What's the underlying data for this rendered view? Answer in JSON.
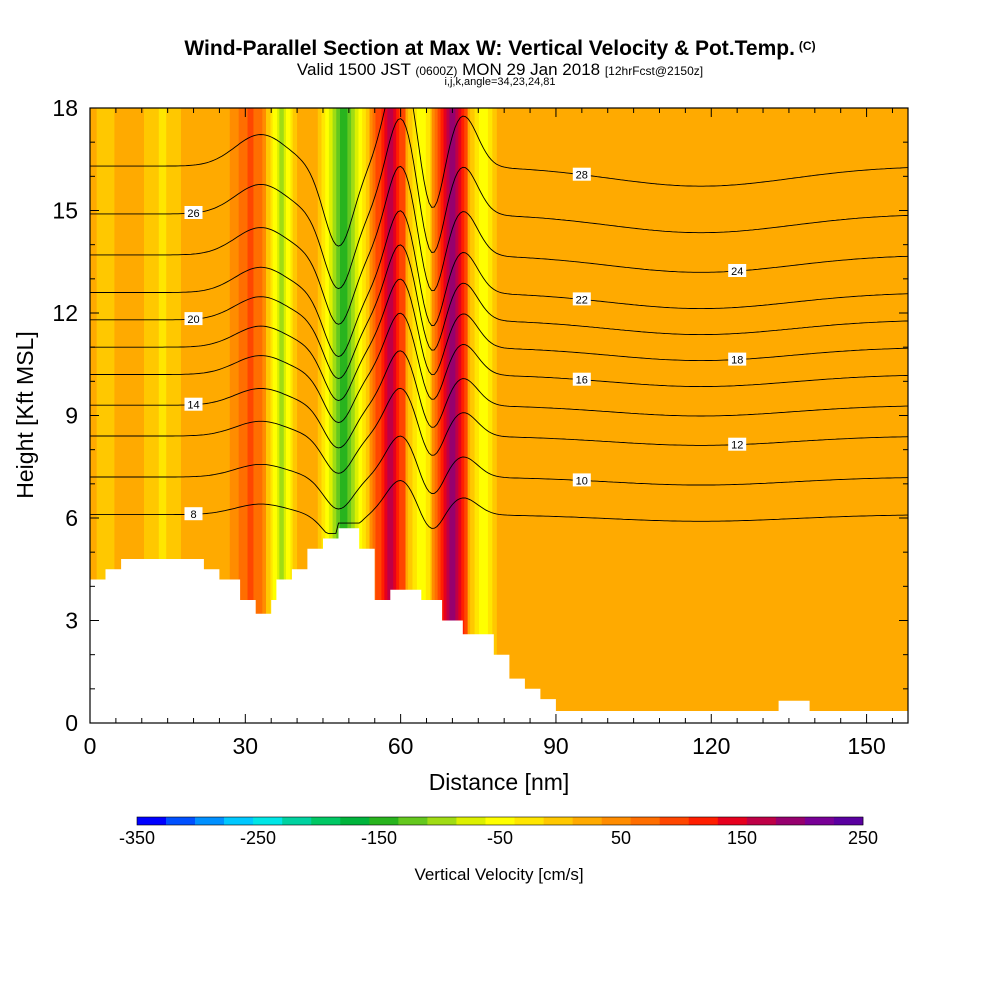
{
  "header": {
    "title": "Wind-Parallel Section at Max W: Vertical Velocity & Pot.Temp.",
    "title_unit": "(C)",
    "subtitle_main": "Valid 1500 JST",
    "subtitle_utc": "(0600Z)",
    "subtitle_date": "MON 29 Jan 2018",
    "subtitle_fcst": "[12hrFcst@2150z]",
    "indices": "i,j,k,angle=34,23,24,81"
  },
  "chart_data": {
    "type": "heatmap",
    "xlabel": "Distance [nm]",
    "ylabel": "Height [Kft MSL]",
    "xlim": [
      0,
      158
    ],
    "ylim": [
      0,
      18
    ],
    "x_ticks": [
      "0",
      "30",
      "60",
      "90",
      "120",
      "150"
    ],
    "x_tick_values": [
      0,
      30,
      60,
      90,
      120,
      150
    ],
    "y_ticks": [
      "0",
      "3",
      "6",
      "9",
      "12",
      "15",
      "18"
    ],
    "y_tick_values": [
      0,
      3,
      6,
      9,
      12,
      15,
      18
    ],
    "colorbar": {
      "title": "Vertical Velocity [cm/s]",
      "range": [
        -350,
        250
      ],
      "tick_labels": [
        "-350",
        "-250",
        "-150",
        "-50",
        "50",
        "150",
        "250"
      ],
      "tick_values": [
        -350,
        -250,
        -150,
        -50,
        50,
        150,
        250
      ],
      "colors": [
        "#0000ff",
        "#0050ff",
        "#0090ff",
        "#00c8ff",
        "#00e6e6",
        "#00d2a0",
        "#00c864",
        "#00b43c",
        "#28b41e",
        "#64c81e",
        "#a0dc14",
        "#dcf000",
        "#ffff00",
        "#ffe600",
        "#ffc800",
        "#ffaa00",
        "#ff8c00",
        "#ff6e00",
        "#ff4600",
        "#ff1e00",
        "#e6001e",
        "#be0046",
        "#96006e",
        "#780096",
        "#5a00a0"
      ]
    },
    "velocity_columns": [
      {
        "x": 3,
        "w": 4,
        "value": 0
      },
      {
        "x": 14,
        "w": 5,
        "value": -15
      },
      {
        "x": 31,
        "w": 4,
        "value": 90
      },
      {
        "x": 37,
        "w": 3,
        "value": -90
      },
      {
        "x": 49,
        "w": 5,
        "value": -150
      },
      {
        "x": 58,
        "w": 4,
        "value": 160
      },
      {
        "x": 64,
        "w": 3,
        "value": -60
      },
      {
        "x": 70,
        "w": 4,
        "value": 190
      },
      {
        "x": 76,
        "w": 3,
        "value": -60
      },
      {
        "x": 84,
        "w": 3,
        "value": 30
      },
      {
        "x": 105,
        "w": 3,
        "value": 30
      },
      {
        "x": 128,
        "w": 3,
        "value": 30
      },
      {
        "x": 152,
        "w": 3,
        "value": 20
      }
    ],
    "terrain": [
      [
        0,
        4.2
      ],
      [
        3,
        4.2
      ],
      [
        3,
        4.5
      ],
      [
        6,
        4.5
      ],
      [
        6,
        4.8
      ],
      [
        22,
        4.8
      ],
      [
        22,
        4.5
      ],
      [
        25,
        4.5
      ],
      [
        25,
        4.2
      ],
      [
        29,
        4.2
      ],
      [
        29,
        3.6
      ],
      [
        32,
        3.6
      ],
      [
        32,
        3.2
      ],
      [
        35,
        3.2
      ],
      [
        35,
        3.6
      ],
      [
        36,
        3.6
      ],
      [
        36,
        4.2
      ],
      [
        39,
        4.2
      ],
      [
        39,
        4.5
      ],
      [
        42,
        4.5
      ],
      [
        42,
        5.1
      ],
      [
        45,
        5.1
      ],
      [
        45,
        5.4
      ],
      [
        48,
        5.4
      ],
      [
        48,
        5.7
      ],
      [
        52,
        5.7
      ],
      [
        52,
        5.1
      ],
      [
        55,
        5.1
      ],
      [
        55,
        3.6
      ],
      [
        58,
        3.6
      ],
      [
        58,
        3.9
      ],
      [
        64,
        3.9
      ],
      [
        64,
        3.6
      ],
      [
        68,
        3.6
      ],
      [
        68,
        3.0
      ],
      [
        72,
        3.0
      ],
      [
        72,
        2.6
      ],
      [
        78,
        2.6
      ],
      [
        78,
        2.0
      ],
      [
        81,
        2.0
      ],
      [
        81,
        1.3
      ],
      [
        84,
        1.3
      ],
      [
        84,
        1.0
      ],
      [
        87,
        1.0
      ],
      [
        87,
        0.7
      ],
      [
        90,
        0.7
      ],
      [
        90,
        0.35
      ],
      [
        133,
        0.35
      ],
      [
        133,
        0.65
      ],
      [
        139,
        0.65
      ],
      [
        139,
        0.35
      ],
      [
        158,
        0.35
      ],
      [
        158,
        0
      ],
      [
        0,
        0
      ]
    ],
    "theta_contours": [
      {
        "label": "8",
        "base": 6.1
      },
      {
        "label": "10",
        "base": 7.2
      },
      {
        "label": "12",
        "base": 8.4
      },
      {
        "label": "14",
        "base": 9.3
      },
      {
        "label": "16",
        "base": 10.2
      },
      {
        "label": "18",
        "base": 11.0
      },
      {
        "label": "20",
        "base": 11.8
      },
      {
        "label": "22",
        "base": 12.6
      },
      {
        "label": "24",
        "base": 13.7
      },
      {
        "label": "26",
        "base": 14.9
      },
      {
        "label": "28",
        "base": 16.3
      }
    ]
  }
}
